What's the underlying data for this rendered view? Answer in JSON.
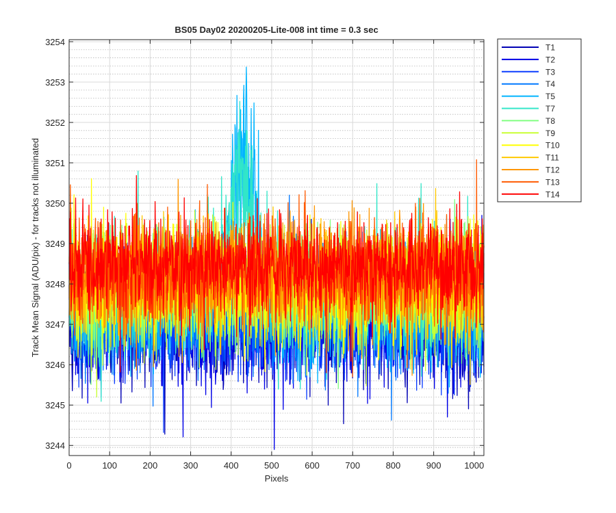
{
  "chart_data": {
    "type": "line",
    "title": "BS05 Day02 20200205-Lite-008 int time = 0.3 sec",
    "xlabel": "Pixels",
    "ylabel": "Track Mean Signal (ADU/pix) - for tracks not illuminated",
    "xlim": [
      0,
      1024
    ],
    "ylim": [
      3243.75,
      3254.05
    ],
    "xticks": [
      0,
      100,
      200,
      300,
      400,
      500,
      600,
      700,
      800,
      900,
      1000
    ],
    "yticks": [
      3244,
      3245,
      3246,
      3247,
      3248,
      3249,
      3250,
      3251,
      3252,
      3253,
      3254
    ],
    "grid": true,
    "minor_grid": true,
    "legend_position": "outside-top-right",
    "n_points_per_series": 1024,
    "series": [
      {
        "name": "T1",
        "color": "#0000b4",
        "mean": 3247.0,
        "spread": 0.75,
        "min": 3243.8,
        "max": 3249.6
      },
      {
        "name": "T2",
        "color": "#0000e6",
        "mean": 3247.0,
        "spread": 0.75,
        "min": 3243.9,
        "max": 3249.7
      },
      {
        "name": "T3",
        "color": "#0a3cff",
        "mean": 3247.1,
        "spread": 0.75,
        "min": 3244.0,
        "max": 3249.8
      },
      {
        "name": "T4",
        "color": "#0078ff",
        "mean": 3247.3,
        "spread": 0.75,
        "min": 3244.3,
        "max": 3250.2
      },
      {
        "name": "T5",
        "color": "#00b4ff",
        "mean": 3247.5,
        "spread": 0.8,
        "min": 3244.5,
        "max": 3254.0
      },
      {
        "name": "T7",
        "color": "#32e6c8",
        "mean": 3247.7,
        "spread": 0.8,
        "min": 3244.5,
        "max": 3252.6
      },
      {
        "name": "T8",
        "color": "#82ff82",
        "mean": 3247.8,
        "spread": 0.75,
        "min": 3245.0,
        "max": 3251.2
      },
      {
        "name": "T9",
        "color": "#c8ff32",
        "mean": 3247.9,
        "spread": 0.75,
        "min": 3245.2,
        "max": 3251.7
      },
      {
        "name": "T10",
        "color": "#ffff00",
        "mean": 3248.0,
        "spread": 0.75,
        "min": 3245.3,
        "max": 3251.4
      },
      {
        "name": "T11",
        "color": "#ffc800",
        "mean": 3248.1,
        "spread": 0.72,
        "min": 3245.4,
        "max": 3251.2
      },
      {
        "name": "T12",
        "color": "#ff9600",
        "mean": 3248.2,
        "spread": 0.7,
        "min": 3245.5,
        "max": 3251.0
      },
      {
        "name": "T13",
        "color": "#ff5a00",
        "mean": 3248.3,
        "spread": 0.68,
        "min": 3245.7,
        "max": 3251.1
      },
      {
        "name": "T14",
        "color": "#ff0000",
        "mean": 3248.4,
        "spread": 0.66,
        "min": 3245.8,
        "max": 3251.3
      }
    ],
    "features": [
      {
        "series": "T5",
        "x_center": 430,
        "x_width": 60,
        "peak": 3254.0
      },
      {
        "series": "T7",
        "x_center": 420,
        "x_width": 70,
        "peak": 3252.6
      }
    ]
  }
}
